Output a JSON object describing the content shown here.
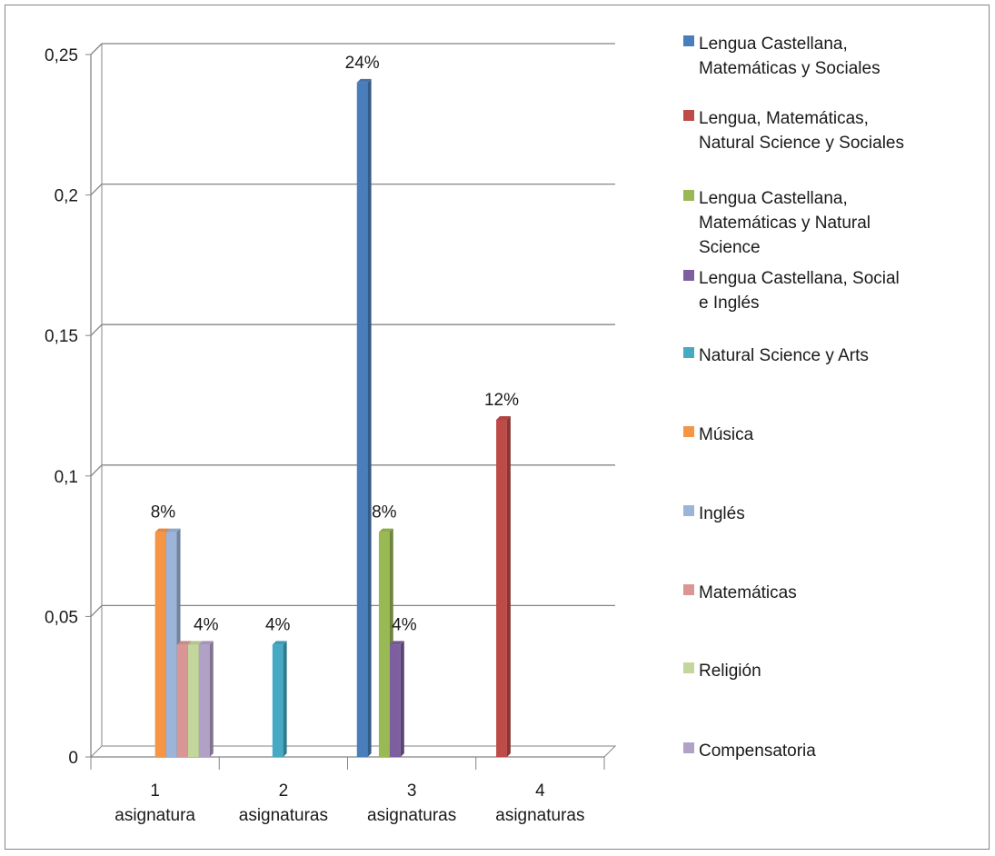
{
  "chart_data": {
    "type": "bar",
    "title": "",
    "xlabel": "",
    "ylabel": "",
    "ylim": [
      0,
      0.25
    ],
    "ytick_labels": [
      "0",
      "0,05",
      "0,1",
      "0,15",
      "0,2",
      "0,25"
    ],
    "ytick_values": [
      0,
      0.05,
      0.1,
      0.15,
      0.2,
      0.25
    ],
    "grid": "horizontal",
    "legend_position": "right",
    "categories": [
      {
        "line1": "1",
        "line2": "asignatura"
      },
      {
        "line1": "2",
        "line2": "asignaturas"
      },
      {
        "line1": "3",
        "line2": "asignaturas"
      },
      {
        "line1": "4",
        "line2": "asignaturas"
      }
    ],
    "series": [
      {
        "name": "Lengua Castellana, Matemáticas y Sociales",
        "color": "#4a7ebb",
        "values": [
          null,
          null,
          0.24,
          null
        ]
      },
      {
        "name": "Lengua, Matemáticas, Natural Science y Sociales",
        "color": "#be4b48",
        "values": [
          null,
          null,
          null,
          0.12
        ]
      },
      {
        "name": "Lengua Castellana, Matemáticas y Natural Science",
        "color": "#98b954",
        "values": [
          null,
          null,
          0.08,
          null
        ]
      },
      {
        "name": "Lengua Castellana, Social e Inglés",
        "color": "#7d5fa0",
        "values": [
          null,
          null,
          0.04,
          null
        ]
      },
      {
        "name": "Natural Science y Arts",
        "color": "#46aac5",
        "values": [
          null,
          0.04,
          null,
          null
        ]
      },
      {
        "name": "Música",
        "color": "#f69546",
        "values": [
          0.08,
          null,
          null,
          null
        ]
      },
      {
        "name": "Inglés",
        "color": "#9cb4d8",
        "values": [
          0.08,
          null,
          null,
          null
        ]
      },
      {
        "name": "Matemáticas",
        "color": "#d99694",
        "values": [
          0.04,
          null,
          null,
          null
        ]
      },
      {
        "name": "Religión",
        "color": "#c3d69b",
        "values": [
          0.04,
          null,
          null,
          null
        ]
      },
      {
        "name": "Compensatoria",
        "color": "#b2a1c7",
        "values": [
          0.04,
          null,
          null,
          null
        ]
      }
    ],
    "data_labels": [
      {
        "text": "8%",
        "category": 0,
        "value": 0.08
      },
      {
        "text": "4%",
        "category": 0,
        "value": 0.04
      },
      {
        "text": "4%",
        "category": 1,
        "value": 0.04
      },
      {
        "text": "24%",
        "category": 2,
        "value": 0.24
      },
      {
        "text": "8%",
        "category": 2,
        "value": 0.08
      },
      {
        "text": "4%",
        "category": 2,
        "value": 0.04
      },
      {
        "text": "12%",
        "category": 3,
        "value": 0.12
      }
    ]
  },
  "legend": {
    "items": [
      {
        "line1": "Lengua Castellana,",
        "line2": "Matemáticas y Sociales",
        "line3": "",
        "color": "#4a7ebb"
      },
      {
        "line1": "Lengua, Matemáticas,",
        "line2": "Natural Science y Sociales",
        "line3": "",
        "color": "#be4b48"
      },
      {
        "line1": "Lengua Castellana,",
        "line2": "Matemáticas y Natural",
        "line3": "Science",
        "color": "#98b954"
      },
      {
        "line1": "Lengua Castellana, Social",
        "line2": "e Inglés",
        "line3": "",
        "color": "#7d5fa0"
      },
      {
        "line1": "Natural Science y Arts",
        "line2": "",
        "line3": "",
        "color": "#46aac5"
      },
      {
        "line1": "Música",
        "line2": "",
        "line3": "",
        "color": "#f69546"
      },
      {
        "line1": "Inglés",
        "line2": "",
        "line3": "",
        "color": "#9cb4d8"
      },
      {
        "line1": "Matemáticas",
        "line2": "",
        "line3": "",
        "color": "#d99694"
      },
      {
        "line1": "Religión",
        "line2": "",
        "line3": "",
        "color": "#c3d69b"
      },
      {
        "line1": "Compensatoria",
        "line2": "",
        "line3": "",
        "color": "#b2a1c7"
      }
    ]
  }
}
